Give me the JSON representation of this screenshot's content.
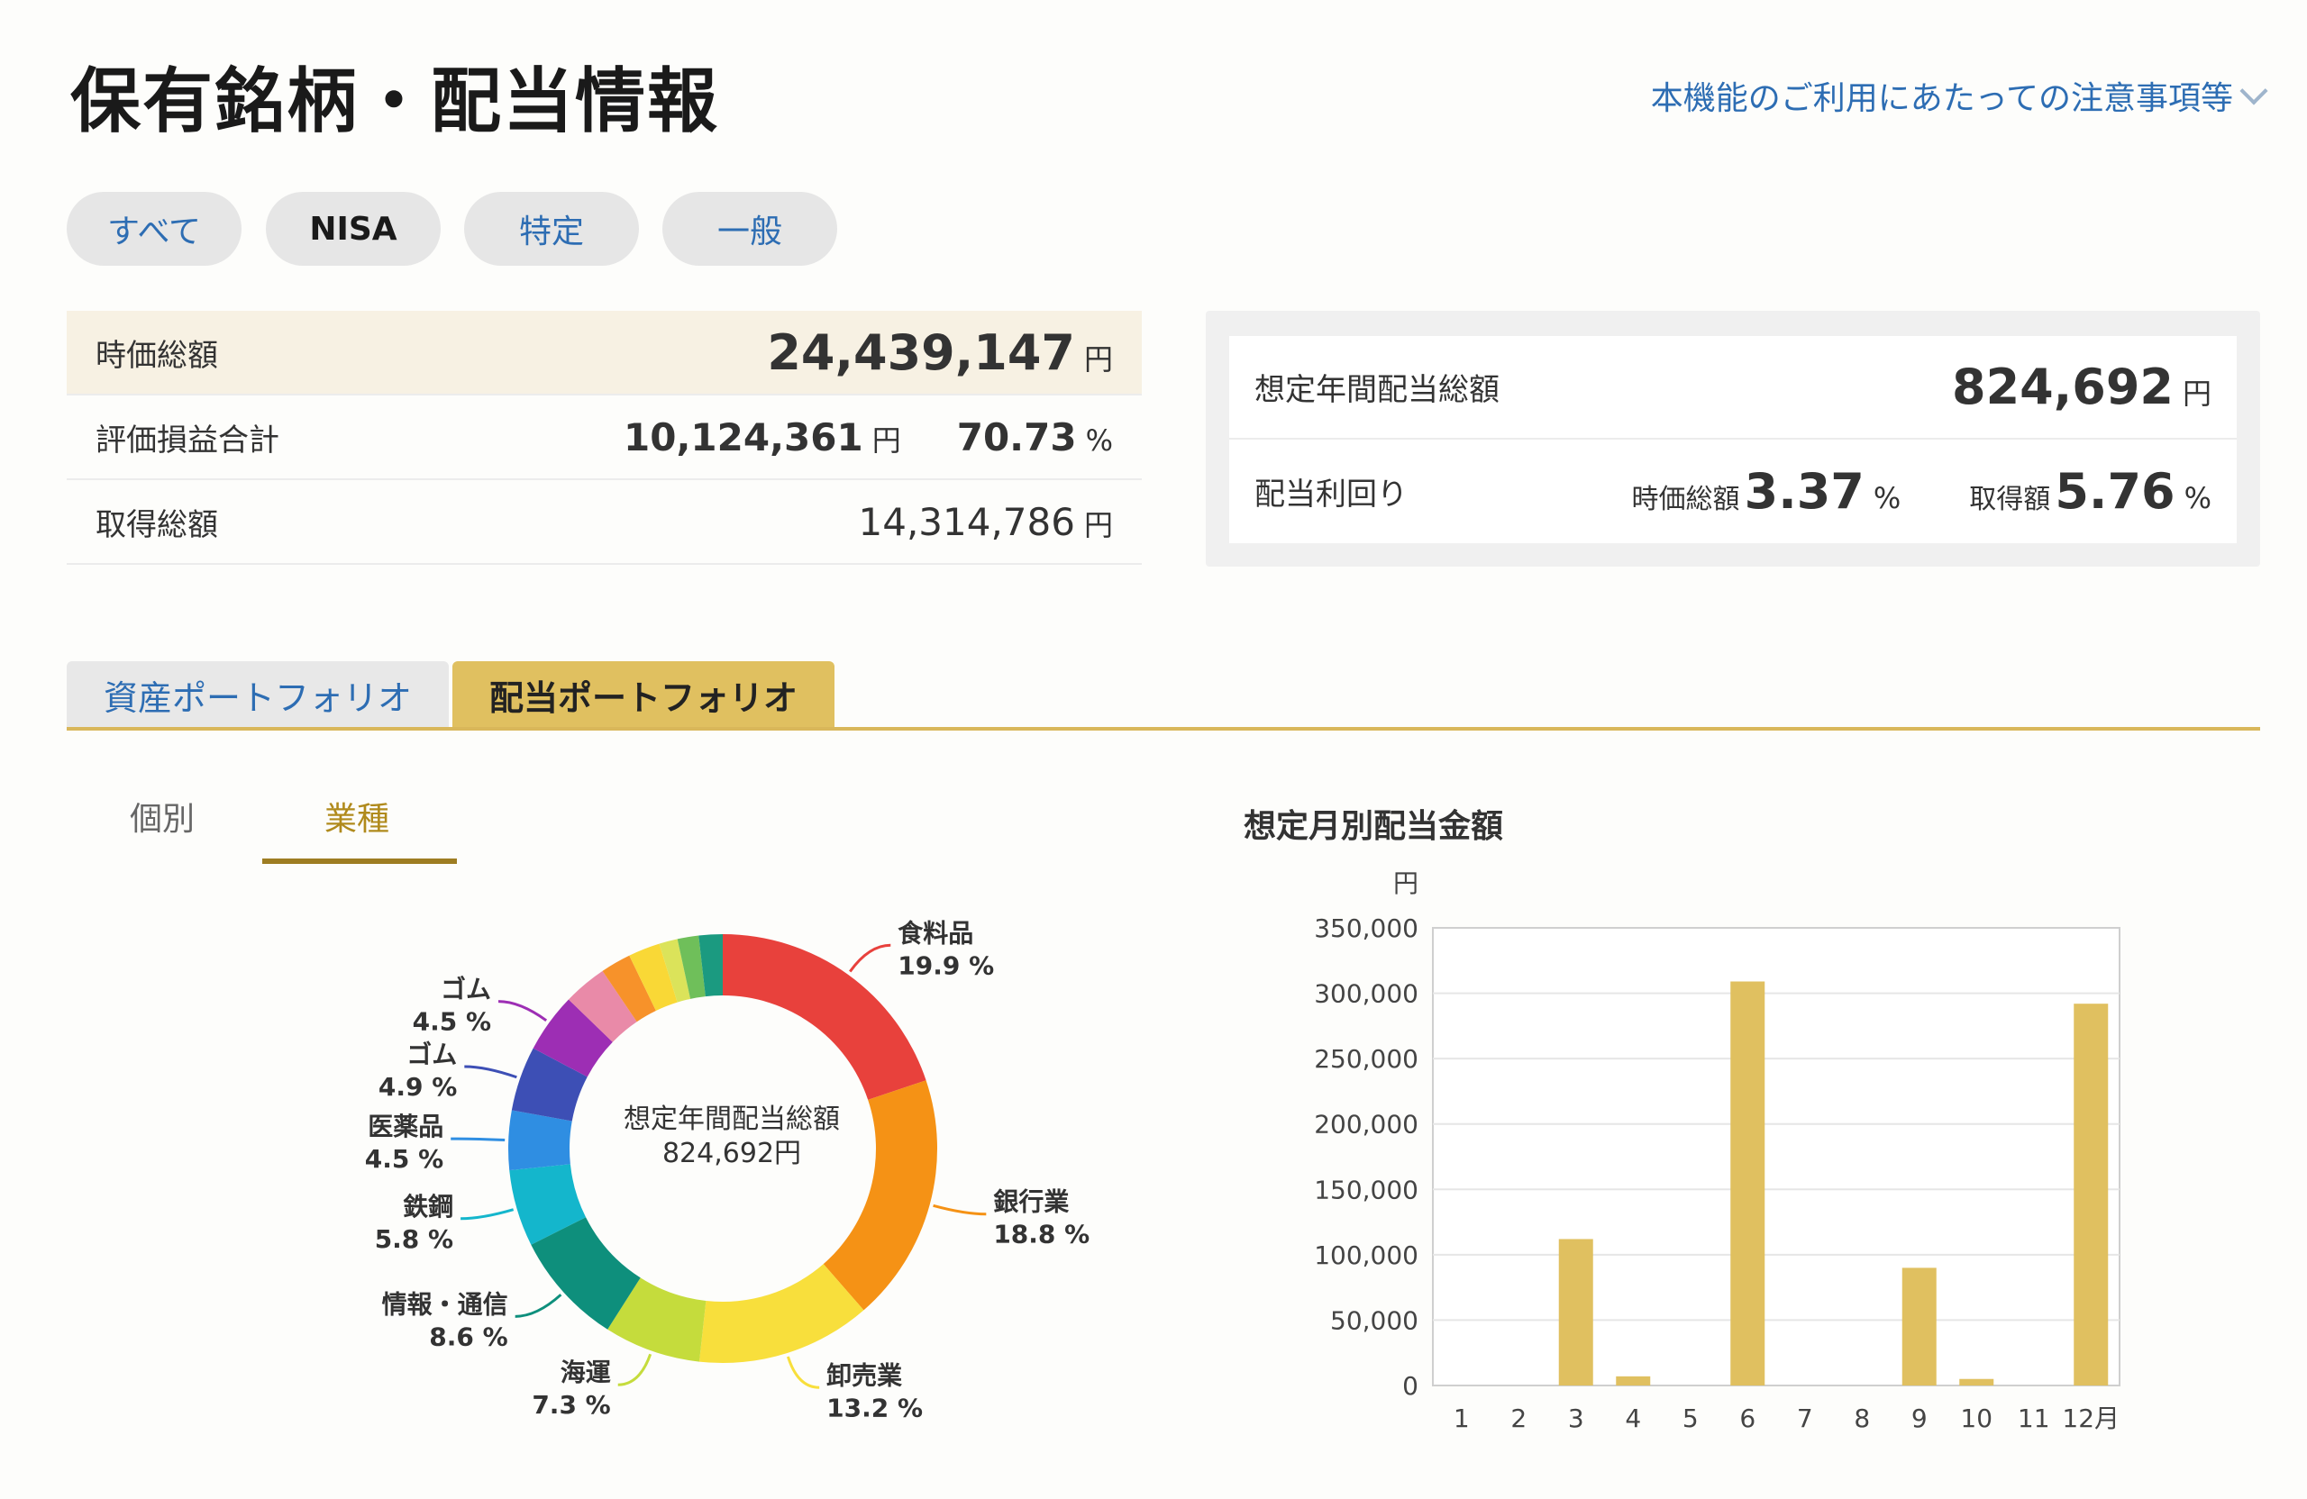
{
  "header": {
    "title": "保有銘柄・配当情報",
    "notice_link": "本機能のご利用にあたっての注意事項等"
  },
  "account_filters": [
    {
      "label": "すべて",
      "active": false
    },
    {
      "label": "NISA",
      "active": true
    },
    {
      "label": "特定",
      "active": false
    },
    {
      "label": "一般",
      "active": false
    }
  ],
  "summary": {
    "market_value": {
      "label": "時価総額",
      "value": "24,439,147",
      "unit": "円"
    },
    "unrealized_pl": {
      "label": "評価損益合計",
      "value": "10,124,361",
      "unit": "円",
      "pct": "70.73",
      "pct_unit": "%"
    },
    "acquisition": {
      "label": "取得総額",
      "value": "14,314,786",
      "unit": "円"
    }
  },
  "dividend_summary": {
    "annual": {
      "label": "想定年間配当総額",
      "value": "824,692",
      "unit": "円"
    },
    "yield": {
      "label": "配当利回り",
      "market_label": "時価総額",
      "market_value": "3.37",
      "market_unit": "%",
      "cost_label": "取得額",
      "cost_value": "5.76",
      "cost_unit": "%"
    }
  },
  "portfolio_tabs": [
    {
      "label": "資産ポートフォリオ",
      "active": false
    },
    {
      "label": "配当ポートフォリオ",
      "active": true
    }
  ],
  "sub_tabs": [
    {
      "label": "個別",
      "active": false
    },
    {
      "label": "業種",
      "active": true
    }
  ],
  "chart_data": [
    {
      "type": "pie",
      "center_label": "想定年間配当総額",
      "center_value": "824,692円",
      "slices": [
        {
          "name": "食料品",
          "pct": 19.9,
          "color": "#e8413c",
          "label": "食料品",
          "pct_label": "19.9 %"
        },
        {
          "name": "銀行業",
          "pct": 18.8,
          "color": "#f59215",
          "label": "銀行業",
          "pct_label": "18.8 %"
        },
        {
          "name": "卸売業",
          "pct": 13.2,
          "color": "#f8df3c",
          "label": "卸売業",
          "pct_label": "13.2 %"
        },
        {
          "name": "海運",
          "pct": 7.3,
          "color": "#c5dc3c",
          "label": "海運",
          "pct_label": "7.3 %"
        },
        {
          "name": "情報・通信",
          "pct": 8.6,
          "color": "#0e8f7c",
          "label": "情報・通信",
          "pct_label": "8.6 %"
        },
        {
          "name": "鉄鋼",
          "pct": 5.8,
          "color": "#14b6cc",
          "label": "鉄鋼",
          "pct_label": "5.8 %"
        },
        {
          "name": "医薬品",
          "pct": 4.5,
          "color": "#2f8ee2",
          "label": "医薬品",
          "pct_label": "4.5 %"
        },
        {
          "name": "ゴム",
          "pct": 4.9,
          "color": "#3d4fb5",
          "label": "ゴム",
          "pct_label": "4.9 %"
        },
        {
          "name": "ゴム",
          "pct": 4.5,
          "color": "#9d2eb4",
          "label": "ゴム",
          "pct_label": "4.5 %"
        },
        {
          "name": "",
          "pct": 3.3,
          "color": "#e98aa8",
          "label": "",
          "pct_label": ""
        },
        {
          "name": "",
          "pct": 2.3,
          "color": "#f7922a",
          "label": "",
          "pct_label": ""
        },
        {
          "name": "",
          "pct": 2.4,
          "color": "#f9d836",
          "label": "",
          "pct_label": ""
        },
        {
          "name": "",
          "pct": 1.4,
          "color": "#dbe35a",
          "label": "",
          "pct_label": ""
        },
        {
          "name": "",
          "pct": 1.6,
          "color": "#6fbf5a",
          "label": "",
          "pct_label": ""
        },
        {
          "name": "",
          "pct": 1.8,
          "color": "#1b9a80",
          "label": "",
          "pct_label": ""
        }
      ]
    },
    {
      "type": "bar",
      "title": "想定月別配当金額",
      "ylabel": "円",
      "categories": [
        "1",
        "2",
        "3",
        "4",
        "5",
        "6",
        "7",
        "8",
        "9",
        "10",
        "11",
        "12月"
      ],
      "values": [
        0,
        0,
        112000,
        7000,
        0,
        309000,
        0,
        0,
        90000,
        5000,
        0,
        292000
      ],
      "ylim": [
        0,
        350000
      ],
      "yticks": [
        "0",
        "50,000",
        "100,000",
        "150,000",
        "200,000",
        "250,000",
        "300,000",
        "350,000"
      ],
      "bar_color": "#e0c060",
      "grid": true
    }
  ]
}
